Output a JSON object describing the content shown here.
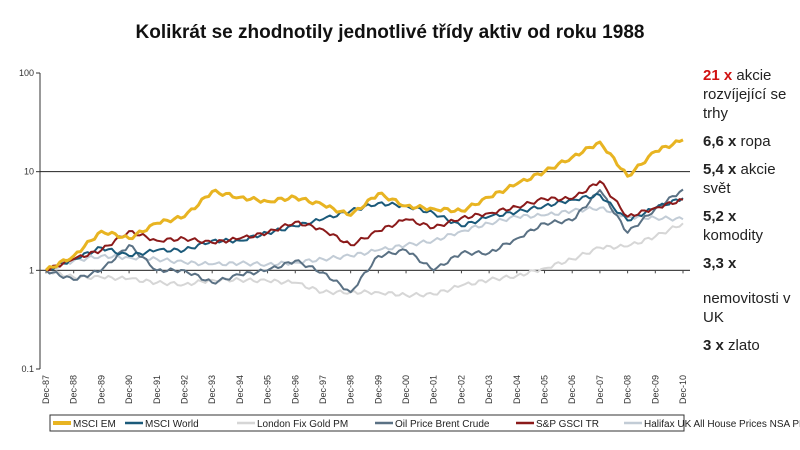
{
  "chart_data": {
    "type": "line",
    "title": "Kolikrát se zhodnotily jednotlivé třídy aktiv od roku 1988",
    "y_scale": "log",
    "ylim": [
      0.1,
      100
    ],
    "y_ticks": [
      "0.1",
      "1",
      "10",
      "100"
    ],
    "x_ticks": [
      "Dec-87",
      "Dec-88",
      "Dec-89",
      "Dec-90",
      "Dec-91",
      "Dec-92",
      "Dec-93",
      "Dec-94",
      "Dec-95",
      "Dec-96",
      "Dec-97",
      "Dec-98",
      "Dec-99",
      "Dec-00",
      "Dec-01",
      "Dec-02",
      "Dec-03",
      "Dec-04",
      "Dec-05",
      "Dec-06",
      "Dec-07",
      "Dec-08",
      "Dec-09",
      "Dec-10"
    ],
    "x": [
      1987,
      1988,
      1989,
      1990,
      1991,
      1992,
      1993,
      1994,
      1995,
      1996,
      1997,
      1998,
      1999,
      2000,
      2001,
      2002,
      2003,
      2004,
      2005,
      2006,
      2007,
      2008,
      2009,
      2010
    ],
    "legend_position": "bottom",
    "series": [
      {
        "name": "MSCI EM",
        "color": "#e8b422",
        "width": 3,
        "values": [
          1,
          1.4,
          2.5,
          2.1,
          3,
          3.5,
          6.3,
          5.5,
          5,
          5.5,
          4.6,
          3.6,
          6,
          4.5,
          4.2,
          4,
          5.5,
          7.5,
          10,
          14,
          20,
          9,
          16,
          21
        ]
      },
      {
        "name": "MSCI World",
        "color": "#1b5a7a",
        "width": 2,
        "values": [
          1,
          1.3,
          1.7,
          1.4,
          1.6,
          1.6,
          2.0,
          2.0,
          2.4,
          2.8,
          3.3,
          4,
          4.8,
          4.5,
          3.8,
          2.8,
          3.5,
          3.9,
          4.5,
          5.2,
          5.8,
          3.2,
          4.3,
          5.4
        ]
      },
      {
        "name": "London Fix Gold PM",
        "color": "#d6d6d6",
        "width": 2,
        "values": [
          1,
          0.85,
          0.85,
          0.82,
          0.75,
          0.72,
          0.8,
          0.8,
          0.78,
          0.75,
          0.6,
          0.6,
          0.6,
          0.56,
          0.57,
          0.7,
          0.8,
          0.88,
          1.05,
          1.3,
          1.7,
          1.75,
          2.2,
          3
        ]
      },
      {
        "name": "Oil Price Brent Crude",
        "color": "#5a7184",
        "width": 2,
        "values": [
          1,
          0.8,
          1.0,
          1.8,
          1.0,
          1.0,
          0.75,
          0.9,
          1.0,
          1.25,
          0.95,
          0.6,
          1.4,
          1.6,
          1.0,
          1.5,
          1.5,
          2.1,
          3.0,
          3.2,
          6.5,
          2.4,
          4.2,
          6.6
        ]
      },
      {
        "name": "S&P GSCI TR",
        "color": "#8b1a1a",
        "width": 2,
        "values": [
          1,
          1.3,
          1.6,
          2.5,
          2.0,
          2.1,
          1.9,
          2.1,
          2.4,
          3.1,
          2.6,
          1.8,
          2.5,
          3.3,
          2.7,
          3.4,
          3.8,
          4.4,
          5.3,
          5.3,
          8,
          3.5,
          4.3,
          5.2
        ]
      },
      {
        "name": "Halifax UK All House Prices NSA PR",
        "color": "#c2ccd6",
        "width": 2,
        "values": [
          1,
          1.25,
          1.4,
          1.35,
          1.3,
          1.2,
          1.15,
          1.18,
          1.15,
          1.2,
          1.3,
          1.4,
          1.6,
          1.8,
          2.0,
          2.5,
          3.0,
          3.5,
          3.6,
          4.0,
          4.3,
          3.5,
          3.4,
          3.3
        ]
      }
    ],
    "annotations": [
      {
        "bold": "21 x",
        "bold_color": "#d11111",
        "text": "akcie rozvíjející se trhy"
      },
      {
        "bold": "6,6 x",
        "text": "ropa"
      },
      {
        "bold": "5,4 x",
        "text": "akcie svět"
      },
      {
        "bold": "5,2 x",
        "text": "komodity"
      },
      {
        "bold": "3,3 x",
        "text": ""
      },
      {
        "bold": "",
        "text": "nemovitosti v UK"
      },
      {
        "bold": "3 x",
        "text": "zlato"
      }
    ]
  }
}
